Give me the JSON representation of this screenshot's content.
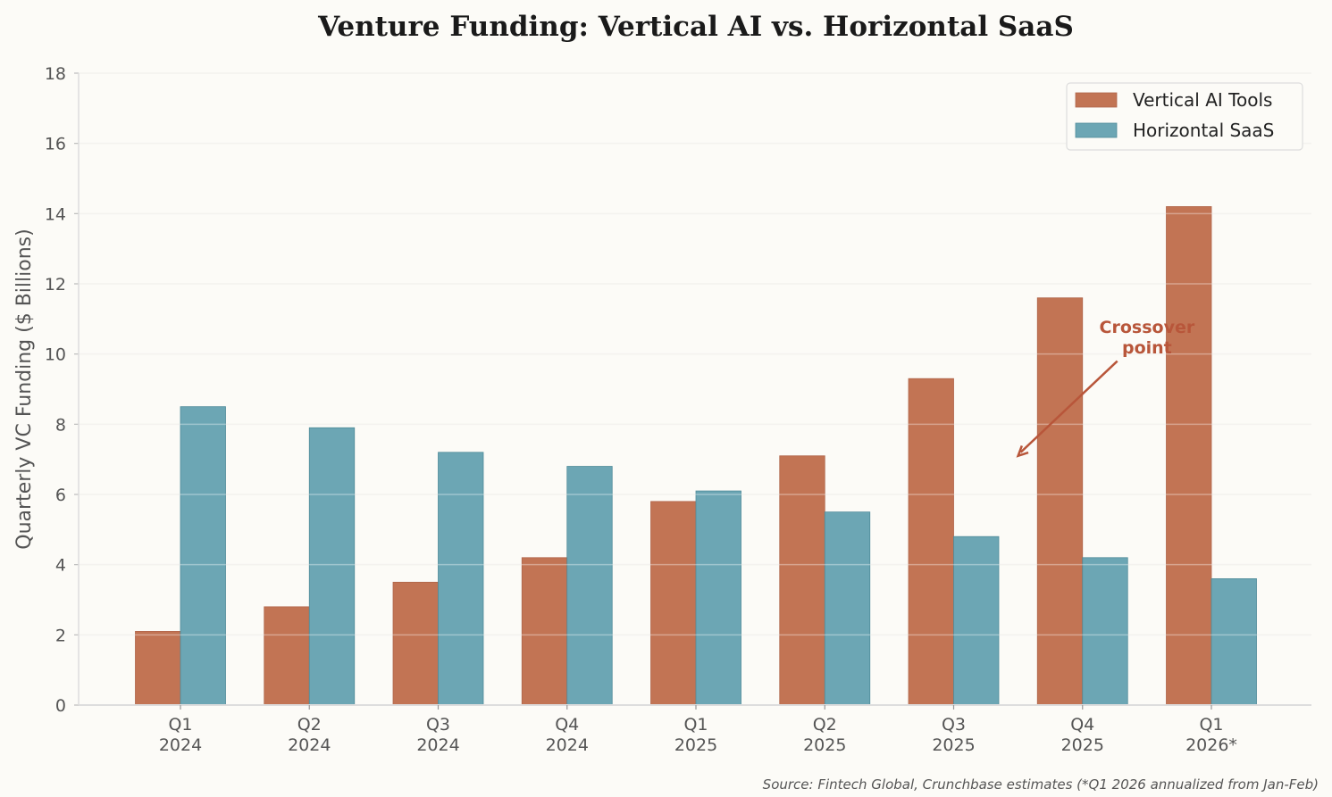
{
  "chart_data": {
    "type": "bar",
    "title": "Venture Funding: Vertical AI vs. Horizontal SaaS",
    "xlabel": "",
    "ylabel": "Quarterly VC Funding ($ Billions)",
    "ylim": [
      0,
      18
    ],
    "yticks": [
      0,
      2,
      4,
      6,
      8,
      10,
      12,
      14,
      16,
      18
    ],
    "grid": "horizontal",
    "legend_position": "top-right",
    "categories": [
      [
        "Q1",
        "2024"
      ],
      [
        "Q2",
        "2024"
      ],
      [
        "Q3",
        "2024"
      ],
      [
        "Q4",
        "2024"
      ],
      [
        "Q1",
        "2025"
      ],
      [
        "Q2",
        "2025"
      ],
      [
        "Q3",
        "2025"
      ],
      [
        "Q4",
        "2025"
      ],
      [
        "Q1",
        "2026*"
      ]
    ],
    "series": [
      {
        "name": "Vertical AI Tools",
        "color": "#c27454",
        "values": [
          2.1,
          2.8,
          3.5,
          4.2,
          5.8,
          7.1,
          9.3,
          11.6,
          14.2
        ]
      },
      {
        "name": "Horizontal SaaS",
        "color": "#6ca6b4",
        "values": [
          8.5,
          7.9,
          7.2,
          6.8,
          6.1,
          5.5,
          4.8,
          4.2,
          3.6
        ]
      }
    ],
    "annotation": {
      "text": [
        "Crossover",
        "point"
      ],
      "arrow_to_x_index": 6.5,
      "arrow_to_y": 7.1,
      "color": "#b8563a"
    },
    "source": "Source: Fintech Global, Crunchbase estimates (*Q1 2026 annualized from Jan-Feb)"
  }
}
